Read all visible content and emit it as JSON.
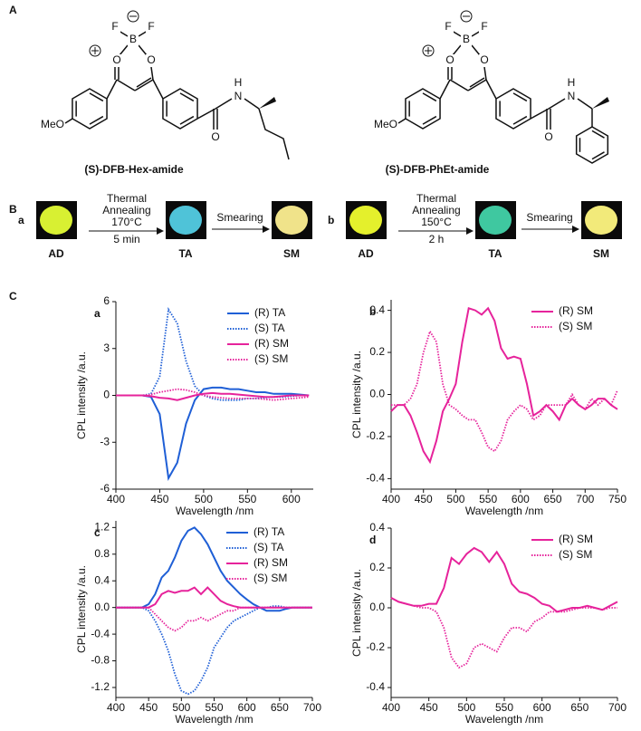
{
  "section_labels": [
    "A",
    "B",
    "C"
  ],
  "molecules": [
    {
      "name": "(S)-DFB-Hex-amide",
      "atoms": [
        "F",
        "F",
        "B",
        "O",
        "O",
        "MeO",
        "H",
        "N",
        "O"
      ]
    },
    {
      "name": "(S)-DFB-PhEt-amide",
      "atoms": [
        "F",
        "F",
        "B",
        "O",
        "O",
        "MeO",
        "H",
        "N",
        "O"
      ]
    }
  ],
  "processes": [
    {
      "label": "a",
      "steps": [
        "AD",
        "TA",
        "SM"
      ],
      "anneal": [
        "Thermal",
        "Annealing",
        "170°C",
        "5 min"
      ],
      "smear": "Smearing"
    },
    {
      "label": "b",
      "steps": [
        "AD",
        "TA",
        "SM"
      ],
      "anneal": [
        "Thermal",
        "Annealing",
        "150°C",
        "2 h"
      ],
      "smear": "Smearing"
    }
  ],
  "chart_data": [
    {
      "type": "line",
      "panel_label": "a",
      "xlabel": "Wavelength /nm",
      "ylabel": "CPL intensity /a.u.",
      "legend": "upper right",
      "x": [
        400,
        410,
        420,
        430,
        440,
        450,
        460,
        470,
        480,
        490,
        500,
        510,
        520,
        530,
        540,
        550,
        560,
        570,
        580,
        590,
        600,
        610,
        620
      ],
      "xlim": [
        400,
        625
      ],
      "xticks": [
        400,
        450,
        500,
        550,
        600
      ],
      "ylim": [
        -6,
        6
      ],
      "yticks": [
        -6,
        -3,
        0,
        3,
        6
      ],
      "series": [
        {
          "name": "(R) TA",
          "color": "#1f5fd6",
          "style": "solid",
          "values": [
            0,
            0,
            0,
            0,
            -0.1,
            -1.2,
            -5.3,
            -4.3,
            -1.8,
            -0.3,
            0.4,
            0.5,
            0.5,
            0.4,
            0.4,
            0.3,
            0.2,
            0.2,
            0.1,
            0.1,
            0.1,
            0.05,
            0
          ]
        },
        {
          "name": "(S) TA",
          "color": "#1f5fd6",
          "style": "dotted",
          "values": [
            0,
            0,
            0,
            0,
            0.1,
            1.2,
            5.5,
            4.6,
            2.2,
            0.6,
            0,
            -0.2,
            -0.3,
            -0.3,
            -0.3,
            -0.2,
            -0.2,
            -0.15,
            -0.1,
            -0.1,
            -0.05,
            0,
            0
          ]
        },
        {
          "name": "(R) SM",
          "color": "#e6239b",
          "style": "solid",
          "values": [
            0,
            0,
            0,
            0,
            -0.05,
            -0.15,
            -0.2,
            -0.3,
            -0.15,
            0,
            0.1,
            0.15,
            0.1,
            0.1,
            0.05,
            0,
            -0.05,
            -0.1,
            -0.1,
            -0.05,
            0,
            0,
            0
          ]
        },
        {
          "name": "(S) SM",
          "color": "#e6239b",
          "style": "dotted",
          "values": [
            0,
            0,
            0,
            0,
            0.05,
            0.2,
            0.3,
            0.4,
            0.35,
            0.2,
            0,
            -0.1,
            -0.15,
            -0.2,
            -0.2,
            -0.2,
            -0.2,
            -0.25,
            -0.3,
            -0.25,
            -0.2,
            -0.15,
            -0.1
          ]
        }
      ]
    },
    {
      "type": "line",
      "panel_label": "b",
      "xlabel": "Wavelength /nm",
      "ylabel": "CPL intensity /a.u.",
      "legend": "upper right",
      "x": [
        400,
        410,
        420,
        430,
        440,
        450,
        460,
        470,
        480,
        490,
        500,
        510,
        520,
        530,
        540,
        550,
        560,
        570,
        580,
        590,
        600,
        610,
        620,
        630,
        640,
        650,
        660,
        670,
        680,
        690,
        700,
        710,
        720,
        730,
        740,
        750
      ],
      "xlim": [
        400,
        750
      ],
      "xticks": [
        400,
        450,
        500,
        550,
        600,
        650,
        700,
        750
      ],
      "ylim": [
        -0.45,
        0.45
      ],
      "yticks": [
        -0.4,
        -0.2,
        {
          "value": 0,
          "label": "0.0"
        },
        0.2,
        0.4
      ],
      "series": [
        {
          "name": "(R) SM",
          "color": "#e6239b",
          "style": "solid",
          "values": [
            -0.08,
            -0.05,
            -0.05,
            -0.1,
            -0.18,
            -0.27,
            -0.32,
            -0.22,
            -0.08,
            -0.02,
            0.05,
            0.25,
            0.41,
            0.4,
            0.38,
            0.41,
            0.35,
            0.22,
            0.17,
            0.18,
            0.17,
            0.05,
            -0.1,
            -0.08,
            -0.05,
            -0.08,
            -0.12,
            -0.05,
            -0.02,
            -0.05,
            -0.07,
            -0.05,
            -0.02,
            -0.02,
            -0.05,
            -0.07
          ]
        },
        {
          "name": "(S) SM",
          "color": "#e6239b",
          "style": "dotted",
          "values": [
            -0.05,
            -0.05,
            -0.05,
            -0.02,
            0.05,
            0.2,
            0.3,
            0.25,
            0.05,
            -0.05,
            -0.07,
            -0.1,
            -0.12,
            -0.12,
            -0.18,
            -0.25,
            -0.27,
            -0.22,
            -0.12,
            -0.08,
            -0.05,
            -0.07,
            -0.12,
            -0.1,
            -0.05,
            -0.05,
            -0.05,
            -0.05,
            0,
            -0.05,
            -0.07,
            -0.02,
            -0.05,
            -0.02,
            -0.05,
            0.02
          ]
        }
      ]
    },
    {
      "type": "line",
      "panel_label": "c",
      "xlabel": "Wavelength /nm",
      "ylabel": "CPL intensity /a.u.",
      "legend": "upper right",
      "x": [
        400,
        410,
        420,
        430,
        440,
        450,
        460,
        470,
        480,
        490,
        500,
        510,
        520,
        530,
        540,
        550,
        560,
        570,
        580,
        590,
        600,
        610,
        620,
        630,
        640,
        650,
        660,
        670,
        680,
        690,
        700
      ],
      "xlim": [
        400,
        700
      ],
      "xticks": [
        400,
        450,
        500,
        550,
        600,
        650,
        700
      ],
      "ylim": [
        -1.35,
        1.3
      ],
      "yticks": [
        -1.2,
        -0.8,
        -0.4,
        {
          "value": 0,
          "label": "0.0"
        },
        0.4,
        0.8,
        1.2
      ],
      "series": [
        {
          "name": "(R) TA",
          "color": "#1f5fd6",
          "style": "solid",
          "values": [
            0,
            0,
            0,
            0,
            0,
            0.05,
            0.2,
            0.45,
            0.55,
            0.75,
            1.0,
            1.15,
            1.2,
            1.1,
            0.95,
            0.75,
            0.55,
            0.4,
            0.3,
            0.2,
            0.12,
            0.05,
            0,
            -0.05,
            -0.05,
            -0.05,
            -0.02,
            0,
            0,
            0,
            0
          ]
        },
        {
          "name": "(S) TA",
          "color": "#1f5fd6",
          "style": "dotted",
          "values": [
            0,
            0,
            0,
            0,
            0,
            -0.05,
            -0.2,
            -0.4,
            -0.65,
            -1.0,
            -1.25,
            -1.3,
            -1.25,
            -1.1,
            -0.9,
            -0.6,
            -0.45,
            -0.3,
            -0.2,
            -0.15,
            -0.1,
            -0.05,
            0,
            0,
            0.02,
            0.02,
            0,
            0,
            0,
            0,
            0
          ]
        },
        {
          "name": "(R) SM",
          "color": "#e6239b",
          "style": "solid",
          "values": [
            0,
            0,
            0,
            0,
            0,
            0,
            0.05,
            0.2,
            0.25,
            0.22,
            0.25,
            0.25,
            0.3,
            0.2,
            0.3,
            0.2,
            0.1,
            0.05,
            0.02,
            0,
            0,
            0,
            0,
            0,
            0,
            0,
            0,
            0,
            0,
            0,
            0
          ]
        },
        {
          "name": "(S) SM",
          "color": "#e6239b",
          "style": "dotted",
          "values": [
            0,
            0,
            0,
            0,
            0,
            0,
            -0.1,
            -0.2,
            -0.3,
            -0.35,
            -0.3,
            -0.2,
            -0.2,
            -0.15,
            -0.2,
            -0.15,
            -0.1,
            -0.05,
            -0.05,
            0,
            0,
            0,
            0,
            0,
            0,
            0,
            0,
            0,
            0,
            0,
            0
          ]
        }
      ]
    },
    {
      "type": "line",
      "panel_label": "d",
      "xlabel": "Wavelength /nm",
      "ylabel": "CPL intensity /a.u.",
      "legend": "upper right",
      "x": [
        400,
        410,
        420,
        430,
        440,
        450,
        460,
        470,
        480,
        490,
        500,
        510,
        520,
        530,
        540,
        550,
        560,
        570,
        580,
        590,
        600,
        610,
        620,
        630,
        640,
        650,
        660,
        670,
        680,
        690,
        700
      ],
      "xlim": [
        400,
        700
      ],
      "xticks": [
        400,
        450,
        500,
        550,
        600,
        650,
        700
      ],
      "ylim": [
        -0.45,
        0.4
      ],
      "yticks": [
        -0.4,
        -0.2,
        {
          "value": 0,
          "label": "0.0"
        },
        0.2,
        0.4
      ],
      "series": [
        {
          "name": "(R) SM",
          "color": "#e6239b",
          "style": "solid",
          "values": [
            0.05,
            0.03,
            0.02,
            0.01,
            0.01,
            0.02,
            0.02,
            0.1,
            0.25,
            0.22,
            0.27,
            0.3,
            0.28,
            0.23,
            0.28,
            0.22,
            0.12,
            0.08,
            0.07,
            0.05,
            0.02,
            0.01,
            -0.02,
            -0.01,
            0,
            0,
            0.01,
            0,
            -0.01,
            0.01,
            0.03
          ]
        },
        {
          "name": "(S) SM",
          "color": "#e6239b",
          "style": "dotted",
          "values": [
            0.05,
            0.03,
            0.02,
            0.01,
            0,
            0,
            -0.02,
            -0.1,
            -0.25,
            -0.3,
            -0.28,
            -0.2,
            -0.18,
            -0.2,
            -0.22,
            -0.15,
            -0.1,
            -0.1,
            -0.12,
            -0.07,
            -0.05,
            -0.02,
            -0.02,
            -0.02,
            -0.01,
            0,
            0,
            0,
            -0.01,
            0,
            0
          ]
        }
      ]
    }
  ]
}
